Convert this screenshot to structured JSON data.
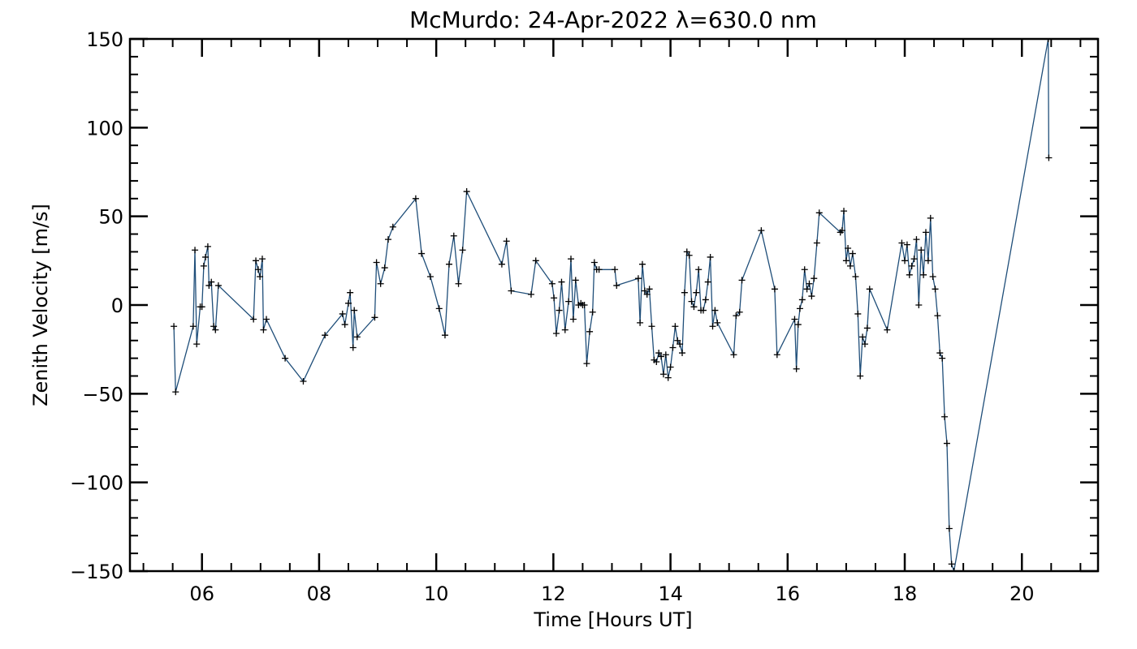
{
  "chart_data": {
    "type": "line",
    "title": "McMurdo: 24-Apr-2022 λ=630.0 nm",
    "xlabel": "Time [Hours UT]",
    "ylabel": "Zenith Velocity [m/s]",
    "xlim": [
      4.77,
      21.3
    ],
    "ylim": [
      -150,
      150
    ],
    "xticks": [
      6,
      8,
      10,
      12,
      14,
      16,
      18,
      20
    ],
    "xtick_labels": [
      "06",
      "08",
      "10",
      "12",
      "14",
      "16",
      "18",
      "20"
    ],
    "yticks": [
      -150,
      -100,
      -50,
      0,
      50,
      100,
      150
    ],
    "ytick_labels": [
      "−150",
      "−100",
      "−50",
      "0",
      "50",
      "100",
      "150"
    ],
    "grid": false,
    "line_color": "#1f4e79",
    "marker": "+",
    "series": [
      {
        "x": [
          5.52,
          5.55,
          5.85,
          5.88,
          5.91,
          5.97,
          6.0,
          6.03,
          6.06,
          6.1,
          6.12,
          6.16,
          6.2,
          6.23,
          6.28,
          6.88,
          6.92,
          6.96,
          6.99,
          7.03,
          7.05,
          7.1,
          7.42,
          7.73,
          8.1,
          8.4,
          8.44,
          8.5,
          8.53,
          8.58,
          8.6,
          8.65,
          8.95,
          8.98,
          9.05,
          9.12,
          9.18,
          9.26,
          9.65,
          9.75,
          9.9,
          10.05,
          10.15,
          10.22,
          10.3,
          10.38,
          10.45,
          10.52,
          11.12,
          11.2,
          11.28,
          11.62,
          11.7,
          11.98,
          12.01,
          12.05,
          12.1,
          12.14,
          12.2,
          12.26,
          12.3,
          12.34,
          12.38,
          12.43,
          12.47,
          12.5,
          12.53,
          12.57,
          12.62,
          12.67,
          12.7,
          12.74,
          12.78,
          13.05,
          13.08,
          13.45,
          13.48,
          13.52,
          13.56,
          13.6,
          13.64,
          13.68,
          13.72,
          13.76,
          13.8,
          13.84,
          13.88,
          13.92,
          13.96,
          14.0,
          14.04,
          14.08,
          14.12,
          14.16,
          14.2,
          14.24,
          14.28,
          14.32,
          14.36,
          14.4,
          14.44,
          14.48,
          14.52,
          14.56,
          14.6,
          14.64,
          14.68,
          14.72,
          14.76,
          14.8,
          15.08,
          15.12,
          15.18,
          15.22,
          15.55,
          15.78,
          15.82,
          16.12,
          16.15,
          16.18,
          16.21,
          16.25,
          16.29,
          16.33,
          16.37,
          16.41,
          16.45,
          16.5,
          16.54,
          16.9,
          16.93,
          16.96,
          17.0,
          17.03,
          17.07,
          17.11,
          17.16,
          17.2,
          17.24,
          17.28,
          17.32,
          17.36,
          17.4,
          17.7,
          17.95,
          18.0,
          18.04,
          18.08,
          18.12,
          18.16,
          18.2,
          18.24,
          18.28,
          18.32,
          18.36,
          18.4,
          18.44,
          18.48,
          18.52,
          18.56,
          18.6,
          18.64,
          18.68,
          18.72,
          18.76,
          18.8,
          18.84,
          20.45,
          20.46
        ],
        "y": [
          -12,
          -49,
          -12,
          31,
          -22,
          -1,
          -1,
          22,
          27,
          33,
          11,
          13,
          -12,
          -14,
          11,
          -8,
          25,
          20,
          16,
          26,
          -14,
          -8,
          -30,
          -43,
          -17,
          -5,
          -11,
          1,
          7,
          -24,
          -3,
          -18,
          -7,
          24,
          12,
          21,
          37,
          44,
          60,
          29,
          16,
          -2,
          -17,
          23,
          39,
          12,
          31,
          64,
          23,
          36,
          8,
          6,
          25,
          12,
          4,
          -16,
          -3,
          13,
          -14,
          2,
          26,
          -8,
          14,
          0,
          1,
          0,
          0,
          -33,
          -15,
          -4,
          24,
          20,
          20,
          20,
          11,
          15,
          -10,
          23,
          8,
          6,
          9,
          -12,
          -31,
          -32,
          -27,
          -29,
          -39,
          -28,
          -41,
          -35,
          -24,
          -12,
          -20,
          -22,
          -27,
          7,
          30,
          28,
          2,
          -1,
          7,
          20,
          -3,
          -3,
          3,
          13,
          27,
          -12,
          -3,
          -10,
          -28,
          -6,
          -4,
          14,
          42,
          9,
          -28,
          -8,
          -36,
          -11,
          -2,
          3,
          20,
          9,
          12,
          5,
          15,
          35,
          52,
          41,
          42,
          53,
          25,
          32,
          22,
          29,
          16,
          -5,
          -40,
          -18,
          -22,
          -13,
          9,
          -14,
          35,
          25,
          34,
          17,
          22,
          26,
          37,
          0,
          31,
          17,
          41,
          25,
          49,
          16,
          9,
          -6,
          -27,
          -30,
          -63,
          -78,
          -126,
          -146,
          -150,
          150,
          83
        ]
      }
    ]
  }
}
